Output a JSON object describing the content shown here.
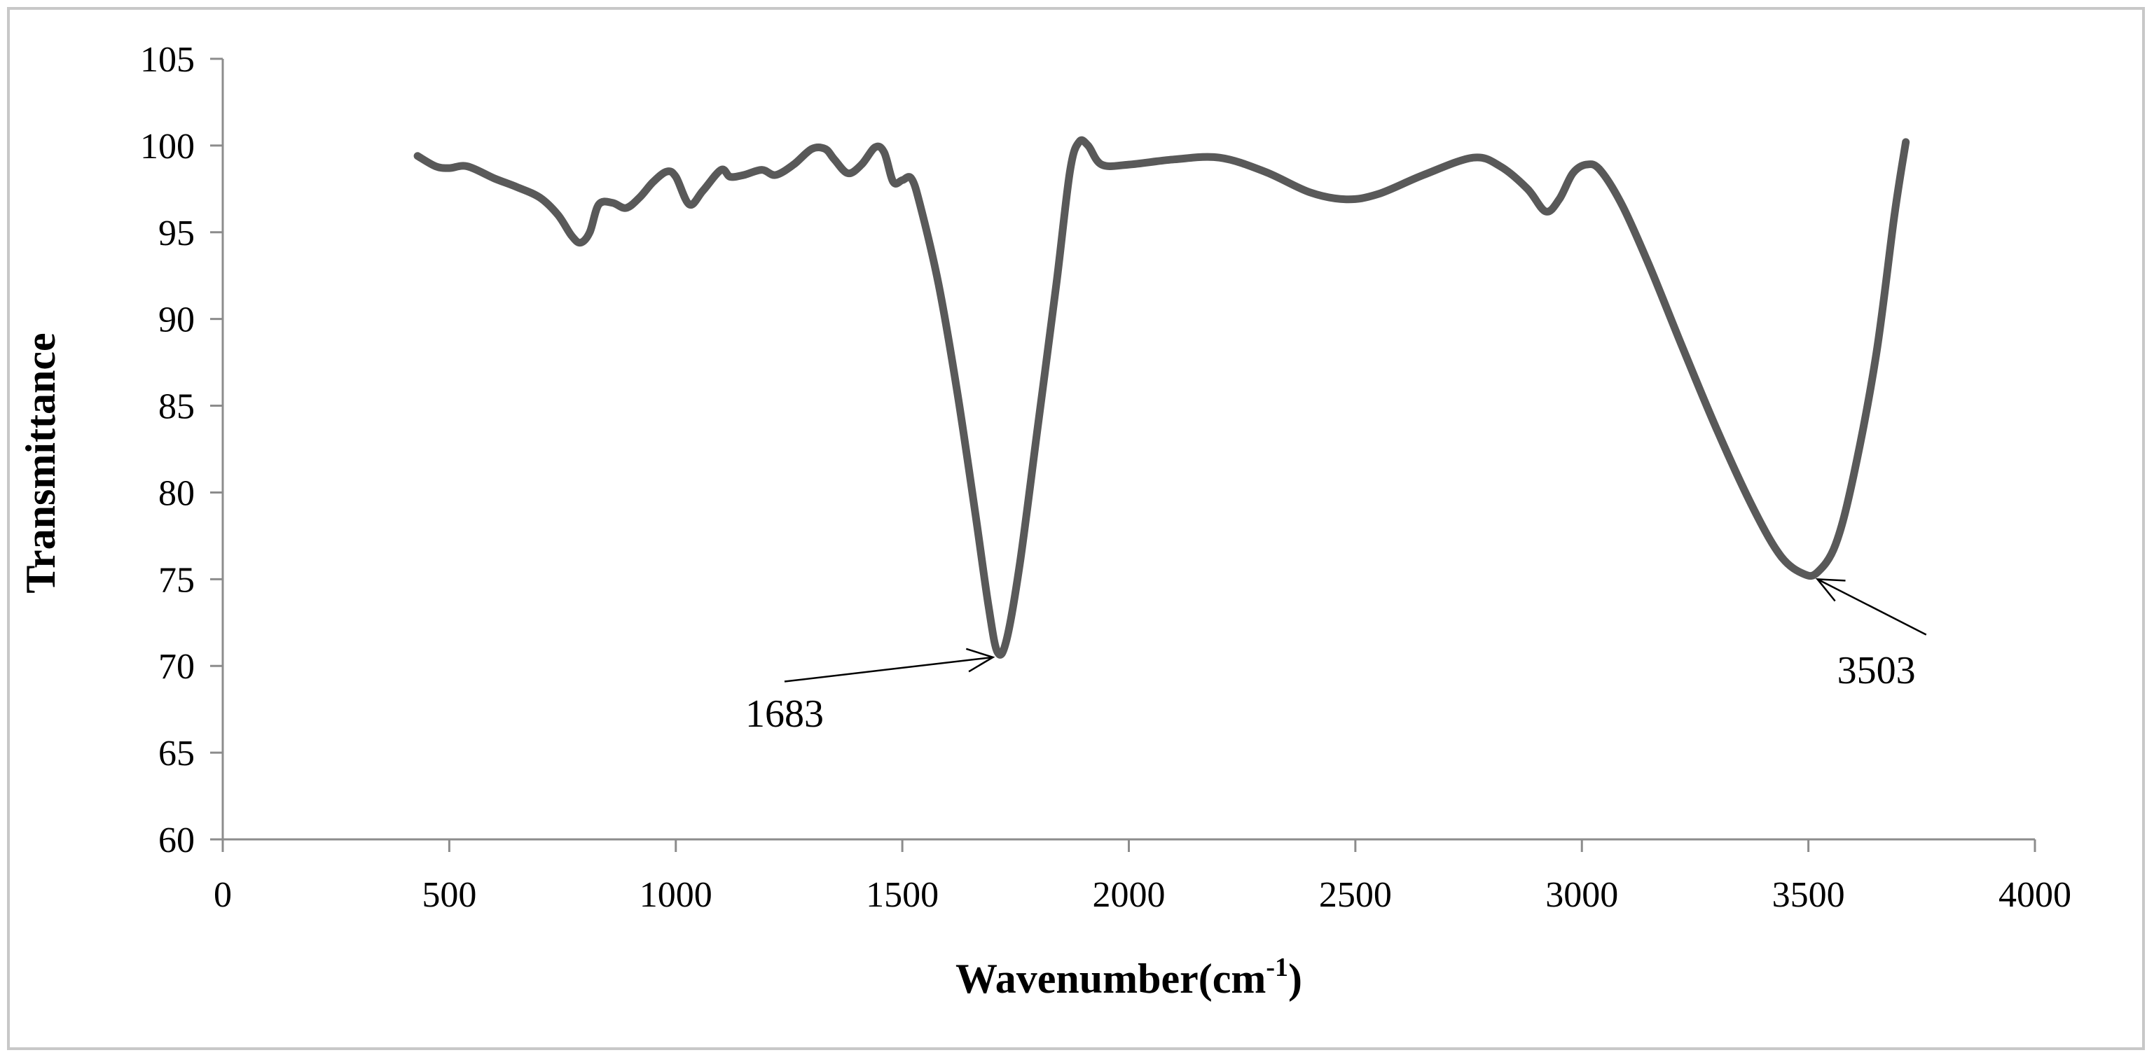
{
  "chart_data": {
    "type": "line",
    "title": "",
    "xlabel": "Wavenumber(cm",
    "xlabel_superscript": "-1",
    "xlabel_suffix": ")",
    "ylabel": "Transmittance",
    "xlim": [
      0,
      4000
    ],
    "ylim": [
      60,
      105
    ],
    "x_ticks": [
      0,
      500,
      1000,
      1500,
      2000,
      2500,
      3000,
      3500,
      4000
    ],
    "y_ticks": [
      60,
      65,
      70,
      75,
      80,
      85,
      90,
      95,
      100,
      105
    ],
    "grid": false,
    "legend": "none",
    "line_color": "#595959",
    "series": [
      {
        "points": [
          [
            430,
            99.4
          ],
          [
            470,
            98.8
          ],
          [
            500,
            98.7
          ],
          [
            540,
            98.8
          ],
          [
            600,
            98.1
          ],
          [
            650,
            97.6
          ],
          [
            700,
            97.0
          ],
          [
            740,
            96.0
          ],
          [
            770,
            94.8
          ],
          [
            790,
            94.4
          ],
          [
            810,
            95.0
          ],
          [
            830,
            96.6
          ],
          [
            860,
            96.7
          ],
          [
            890,
            96.4
          ],
          [
            920,
            97.0
          ],
          [
            950,
            97.9
          ],
          [
            980,
            98.5
          ],
          [
            1000,
            98.2
          ],
          [
            1030,
            96.6
          ],
          [
            1060,
            97.4
          ],
          [
            1100,
            98.6
          ],
          [
            1120,
            98.2
          ],
          [
            1150,
            98.3
          ],
          [
            1190,
            98.6
          ],
          [
            1220,
            98.3
          ],
          [
            1260,
            98.9
          ],
          [
            1300,
            99.8
          ],
          [
            1330,
            99.8
          ],
          [
            1350,
            99.2
          ],
          [
            1380,
            98.4
          ],
          [
            1410,
            98.9
          ],
          [
            1440,
            99.9
          ],
          [
            1460,
            99.6
          ],
          [
            1480,
            97.9
          ],
          [
            1500,
            98.0
          ],
          [
            1520,
            98.1
          ],
          [
            1540,
            96.5
          ],
          [
            1580,
            92.0
          ],
          [
            1620,
            86.0
          ],
          [
            1660,
            79.0
          ],
          [
            1690,
            73.5
          ],
          [
            1710,
            70.8
          ],
          [
            1730,
            71.5
          ],
          [
            1760,
            76.0
          ],
          [
            1800,
            84.0
          ],
          [
            1840,
            92.0
          ],
          [
            1870,
            98.5
          ],
          [
            1890,
            100.2
          ],
          [
            1910,
            100.0
          ],
          [
            1940,
            98.9
          ],
          [
            2000,
            98.9
          ],
          [
            2100,
            99.2
          ],
          [
            2200,
            99.3
          ],
          [
            2300,
            98.5
          ],
          [
            2400,
            97.3
          ],
          [
            2480,
            96.9
          ],
          [
            2550,
            97.2
          ],
          [
            2650,
            98.3
          ],
          [
            2760,
            99.3
          ],
          [
            2820,
            98.8
          ],
          [
            2880,
            97.5
          ],
          [
            2920,
            96.2
          ],
          [
            2950,
            96.9
          ],
          [
            2980,
            98.4
          ],
          [
            3010,
            98.9
          ],
          [
            3040,
            98.6
          ],
          [
            3090,
            96.5
          ],
          [
            3150,
            93.0
          ],
          [
            3220,
            88.5
          ],
          [
            3300,
            83.5
          ],
          [
            3380,
            79.0
          ],
          [
            3440,
            76.3
          ],
          [
            3490,
            75.3
          ],
          [
            3520,
            75.4
          ],
          [
            3560,
            77.0
          ],
          [
            3600,
            81.0
          ],
          [
            3650,
            88.0
          ],
          [
            3690,
            96.0
          ],
          [
            3715,
            100.2
          ]
        ]
      }
    ],
    "annotations": [
      {
        "text": "1683",
        "label_x": 1240,
        "label_y": 66.5,
        "arrow_from": [
          1240,
          69.1
        ],
        "arrow_to": [
          1700,
          70.5
        ]
      },
      {
        "text": "3503",
        "label_x": 3650,
        "label_y": 69.0,
        "arrow_from": [
          3760,
          71.8
        ],
        "arrow_to": [
          3520,
          75.0
        ]
      }
    ]
  }
}
